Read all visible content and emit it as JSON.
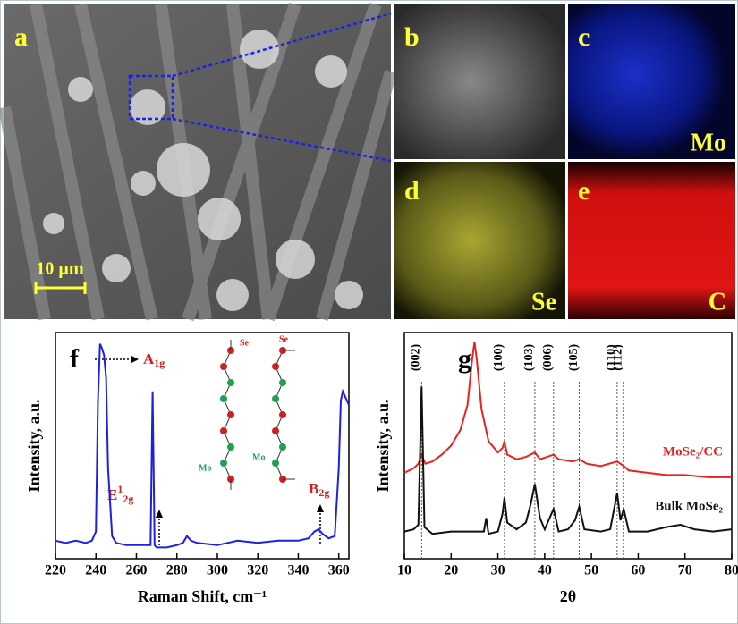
{
  "images": [
    {
      "label": "a",
      "scale_bar": "10 µm"
    },
    {
      "label": "b"
    },
    {
      "label": "c",
      "element": "Mo"
    },
    {
      "label": "d",
      "element": "Se"
    },
    {
      "label": "e",
      "element": "C"
    }
  ],
  "chart_data": [
    {
      "type": "line",
      "panel_label": "f",
      "x_label": "Raman Shift, cm⁻¹",
      "y_label": "Intensity, a.u.",
      "x": [
        220,
        225,
        230,
        235,
        238,
        240,
        241,
        242,
        243,
        244,
        245,
        246,
        248,
        250,
        255,
        260,
        265,
        267,
        268,
        269,
        270,
        275,
        280,
        283,
        285,
        287,
        290,
        300,
        310,
        320,
        330,
        340,
        345,
        348,
        350,
        352,
        355,
        358,
        360,
        361,
        362,
        363,
        364,
        365
      ],
      "series": [
        {
          "color": "#1f1fe0",
          "values": [
            8,
            7,
            8,
            7,
            8,
            12,
            70,
            95,
            93,
            90,
            80,
            40,
            10,
            7,
            6,
            6,
            6,
            6,
            74,
            6,
            5,
            5,
            6,
            7,
            10,
            8,
            7,
            6,
            8,
            7,
            8,
            8,
            9,
            12,
            13,
            11,
            9,
            10,
            40,
            70,
            74,
            72,
            70,
            68
          ]
        }
      ],
      "xlim": [
        220,
        365
      ],
      "xticks": [
        220,
        240,
        260,
        280,
        300,
        320,
        340,
        360
      ],
      "ylim": [
        0,
        100
      ],
      "annotations": [
        {
          "main": "A",
          "sub": "1g"
        },
        {
          "main": "E",
          "sup": "1",
          "sub": "2g"
        },
        {
          "main": "B",
          "sub": "2g"
        }
      ],
      "molecule_labels": [
        "Se",
        "Se",
        "Mo",
        "Mo"
      ]
    },
    {
      "type": "line",
      "panel_label": "g",
      "x_label": "2θ",
      "y_label": "Intensity, a.u.",
      "series": [
        {
          "name": "MoSe₂/CC",
          "color": "#e8231f",
          "x": [
            10,
            12,
            13,
            13.7,
            14.5,
            16,
            18,
            20,
            22,
            23.5,
            24.5,
            25,
            25.5,
            26.5,
            28,
            30,
            31,
            31.4,
            32,
            34,
            36,
            37.9,
            39,
            41.9,
            43,
            46,
            47.4,
            49,
            52,
            55.5,
            56.9,
            58,
            62,
            66,
            70,
            75,
            80
          ],
          "values": [
            38,
            40,
            42,
            46,
            42,
            43,
            46,
            50,
            57,
            68,
            88,
            96,
            88,
            66,
            52,
            47,
            49,
            52,
            46,
            44,
            45,
            47,
            44,
            46,
            44,
            43,
            44,
            42,
            41,
            43,
            41,
            39,
            38,
            37,
            37,
            36,
            36
          ]
        },
        {
          "name": "Bulk MoSe₂",
          "color": "#111111",
          "x": [
            10,
            12,
            13,
            13.7,
            14.3,
            16,
            20,
            25,
            27,
            27.5,
            28,
            30,
            31,
            31.4,
            32,
            34,
            36,
            37,
            37.9,
            39,
            40,
            41.9,
            43,
            45,
            46.5,
            47.4,
            48.5,
            52,
            54,
            55.5,
            56.2,
            56.9,
            58,
            62,
            66,
            69,
            72,
            76,
            80
          ],
          "values": [
            12,
            13,
            15,
            76,
            14,
            11,
            12,
            12,
            12,
            18,
            11,
            12,
            20,
            27,
            16,
            13,
            16,
            24,
            33,
            18,
            13,
            22,
            12,
            13,
            17,
            23,
            13,
            12,
            13,
            29,
            17,
            22,
            12,
            12,
            14,
            15,
            13,
            12,
            13
          ]
        }
      ],
      "xlim": [
        10,
        80
      ],
      "xticks": [
        10,
        20,
        30,
        40,
        50,
        60,
        70,
        80
      ],
      "ylim": [
        0,
        100
      ],
      "reflections": [
        {
          "label": "(002)",
          "x": 13.7
        },
        {
          "label": "(100)",
          "x": 31.4
        },
        {
          "label": "(103)",
          "x": 37.9
        },
        {
          "label": "(006)",
          "x": 41.9
        },
        {
          "label": "(105)",
          "x": 47.4
        },
        {
          "label": "(110)",
          "x": 55.5
        },
        {
          "label": "(112)",
          "x": 56.9
        }
      ]
    }
  ]
}
